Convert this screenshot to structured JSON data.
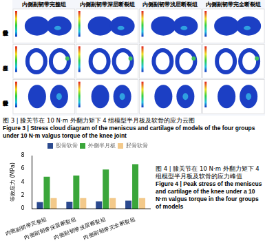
{
  "figure3": {
    "columns": [
      "内侧副韧带完整组",
      "内侧副韧带深层断裂组",
      "内侧副韧带浅层断裂组",
      "内侧副韧带完全断裂组"
    ],
    "rows": [
      "股骨软骨",
      "半月板",
      "胫骨软骨"
    ],
    "caption_zh": "图 3 | 膝关节在 10 N·m 外翻力矩下 4 组模型半月板及软骨的应力云图",
    "caption_en": "Figure 3 | Stress cloud diagram of the meniscus and cartilage of models of the four groups under 10 N·m valgus torque of the knee joint"
  },
  "chart_data": {
    "type": "bar",
    "title": "图 4 | 膝关节在 10 N·m 外翻力矩下 4 组模型半月板及软骨的应力峰值",
    "subtitle": "Figure 4 | Peak stress of the meniscus and cartilage of the knee under a 10 N·m valgus torque in the four groups of models",
    "y_label": "等效应力 (MPa)",
    "categories": [
      "内侧副韧带完整组",
      "内侧副韧带深层断裂组",
      "内侧副韧带浅层断裂组",
      "内侧副韧带完全断裂组"
    ],
    "series": [
      {
        "name": "股骨软骨",
        "color": "#2b4a8f",
        "values": [
          1.0,
          1.05,
          1.1,
          1.2
        ]
      },
      {
        "name": "外侧半月板",
        "color": "#3aa63a",
        "values": [
          4.8,
          5.0,
          5.9,
          6.7
        ]
      },
      {
        "name": "胫骨软骨",
        "color": "#f3c98a",
        "values": [
          1.6,
          1.6,
          1.6,
          1.6
        ]
      }
    ],
    "ylim": [
      0,
      8
    ],
    "yticks": [
      0,
      2,
      4,
      6,
      8
    ],
    "grid": false,
    "legend": "upper right"
  }
}
